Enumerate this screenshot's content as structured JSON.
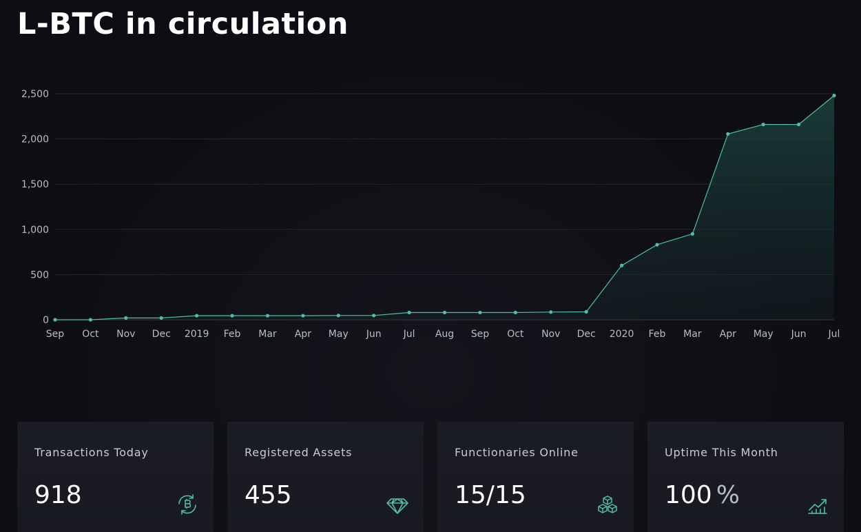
{
  "page": {
    "title": "L-BTC in circulation"
  },
  "colors": {
    "accent": "#4fbfa6",
    "background": "#0f1015",
    "card_background": "#1b1c24",
    "grid": "#23252e"
  },
  "chart_data": {
    "type": "area",
    "title": "",
    "xlabel": "",
    "ylabel": "",
    "ylim": [
      0,
      2500
    ],
    "yticks": [
      "0",
      "500",
      "1,000",
      "1,500",
      "2,000",
      "2,500"
    ],
    "ytick_values": [
      0,
      500,
      1000,
      1500,
      2000,
      2500
    ],
    "categories": [
      "Sep",
      "Oct",
      "Nov",
      "Dec",
      "2019",
      "Feb",
      "Mar",
      "Apr",
      "May",
      "Jun",
      "Jul",
      "Aug",
      "Sep",
      "Oct",
      "Nov",
      "Dec",
      "2020",
      "Feb",
      "Mar",
      "Apr",
      "May",
      "Jun",
      "Jul"
    ],
    "series": [
      {
        "values": [
          0,
          0,
          20,
          20,
          45,
          45,
          45,
          45,
          47,
          47,
          80,
          80,
          80,
          80,
          85,
          88,
          600,
          830,
          950,
          2055,
          2160,
          2160,
          2480
        ],
        "color": "#4fbfa6"
      }
    ],
    "grid": true,
    "legend": "none"
  },
  "stats": [
    {
      "label": "Transactions Today",
      "value": "918",
      "unit": "",
      "icon": "bitcoin-refresh-icon"
    },
    {
      "label": "Registered Assets",
      "value": "455",
      "unit": "",
      "icon": "diamond-icon"
    },
    {
      "label": "Functionaries Online",
      "value": "15/15",
      "unit": "",
      "icon": "cubes-icon"
    },
    {
      "label": "Uptime This Month",
      "value": "100",
      "unit": "%",
      "icon": "trending-up-icon"
    }
  ]
}
